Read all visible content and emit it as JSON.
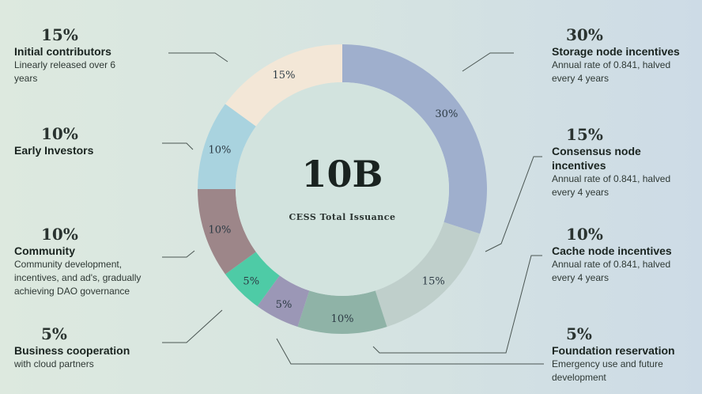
{
  "chart_data": {
    "type": "pie",
    "variant": "donut",
    "center_value": "10B",
    "center_label": "CESS Total Issuance",
    "direction": "clockwise-from-top",
    "slices": [
      {
        "label": "Storage node incentives",
        "value": 30,
        "display": "30%",
        "description": "Annual rate of 0.841, halved every 4 years",
        "color": "#9fafcd"
      },
      {
        "label": "Consensus node incentives",
        "value": 15,
        "display": "15%",
        "description": "Annual rate of 0.841, halved every 4 years",
        "color": "#bfcfcb"
      },
      {
        "label": "Cache node incentives",
        "value": 10,
        "display": "10%",
        "description": "Annual rate of 0.841, halved every 4 years",
        "color": "#8fb3a7"
      },
      {
        "label": "Foundation reservation",
        "value": 5,
        "display": "5%",
        "description": "Emergency use and future development",
        "color": "#9b97b6"
      },
      {
        "label": "Business cooperation",
        "value": 5,
        "display": "5%",
        "description": "with cloud partners",
        "color": "#4ecba6"
      },
      {
        "label": "Community",
        "value": 10,
        "display": "10%",
        "description": "Community development, incentives, and ad's, gradually achieving DAO governance",
        "color": "#9d8689"
      },
      {
        "label": "Early Investors",
        "value": 10,
        "display": "10%",
        "description": "",
        "color": "#a9d3df"
      },
      {
        "label": "Initial contributors",
        "value": 15,
        "display": "15%",
        "description": "Linearly released over 6 years",
        "color": "#f3e7d7"
      }
    ]
  },
  "colors": {
    "leader_line": "#4a5552",
    "inner_circle": "#d2e3de"
  }
}
